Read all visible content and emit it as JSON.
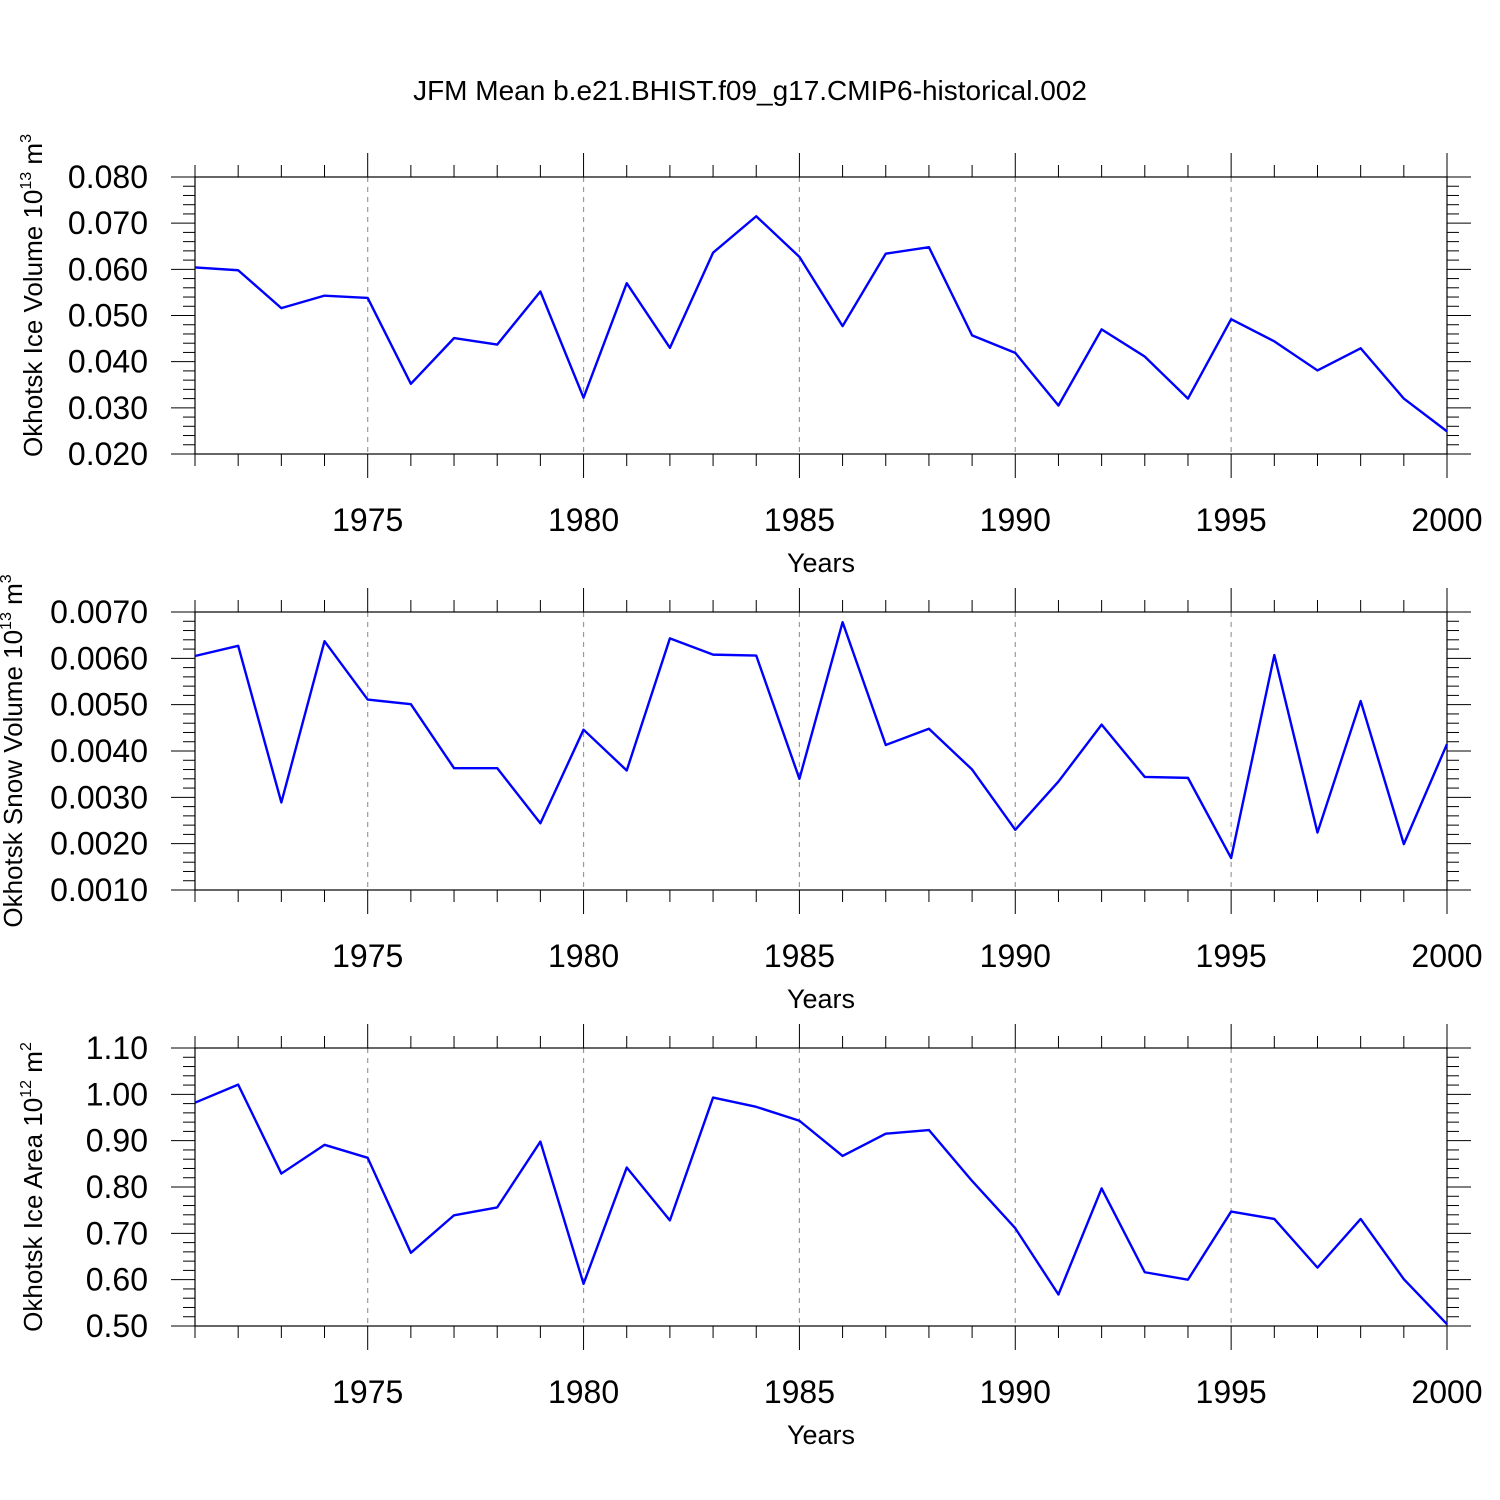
{
  "figure_title": "JFM Mean b.e21.BHIST.f09_g17.CMIP6-historical.002",
  "chart_data": [
    {
      "type": "line",
      "title": "JFM Mean b.e21.BHIST.f09_g17.CMIP6-historical.002",
      "xlabel": "Years",
      "ylabel": {
        "text": "Okhotsk Ice Volume 10",
        "sup": "13",
        "unit": "m",
        "unit_sup": "3"
      },
      "xlim": [
        1971,
        2000
      ],
      "ylim": [
        0.02,
        0.08
      ],
      "x_ticks": [
        1975,
        1980,
        1985,
        1990,
        1995,
        2000
      ],
      "y_ticks": [
        "0.020",
        "0.030",
        "0.040",
        "0.050",
        "0.060",
        "0.070",
        "0.080"
      ],
      "grid": "vertical dashed at major x ticks",
      "line_color": "#0000ff",
      "x": [
        1971,
        1972,
        1973,
        1974,
        1975,
        1976,
        1977,
        1978,
        1979,
        1980,
        1981,
        1982,
        1983,
        1984,
        1985,
        1986,
        1987,
        1988,
        1989,
        1990,
        1991,
        1992,
        1993,
        1994,
        1995,
        1996,
        1997,
        1998,
        1999,
        2000
      ],
      "series": [
        {
          "values": [
            0.0604,
            0.0598,
            0.0516,
            0.0543,
            0.0538,
            0.0352,
            0.0451,
            0.0437,
            0.0552,
            0.0322,
            0.057,
            0.043,
            0.0636,
            0.0715,
            0.0627,
            0.0477,
            0.0634,
            0.0648,
            0.0457,
            0.0419,
            0.0305,
            0.047,
            0.0411,
            0.032,
            0.0492,
            0.0444,
            0.0381,
            0.0429,
            0.032,
            0.0249
          ]
        }
      ]
    },
    {
      "type": "line",
      "xlabel": "Years",
      "ylabel": {
        "text": "Okhotsk Snow Volume 10",
        "sup": "13",
        "unit": "m",
        "unit_sup": "3"
      },
      "xlim": [
        1971,
        2000
      ],
      "ylim": [
        0.001,
        0.007
      ],
      "x_ticks": [
        1975,
        1980,
        1985,
        1990,
        1995,
        2000
      ],
      "y_ticks": [
        "0.0010",
        "0.0020",
        "0.0030",
        "0.0040",
        "0.0050",
        "0.0060",
        "0.0070"
      ],
      "grid": "vertical dashed at major x ticks",
      "line_color": "#0000ff",
      "x": [
        1971,
        1972,
        1973,
        1974,
        1975,
        1976,
        1977,
        1978,
        1979,
        1980,
        1981,
        1982,
        1983,
        1984,
        1985,
        1986,
        1987,
        1988,
        1989,
        1990,
        1991,
        1992,
        1993,
        1994,
        1995,
        1996,
        1997,
        1998,
        1999,
        2000
      ],
      "series": [
        {
          "values": [
            0.00605,
            0.00627,
            0.00289,
            0.00637,
            0.00511,
            0.00501,
            0.00363,
            0.00363,
            0.00244,
            0.00446,
            0.00358,
            0.00643,
            0.00608,
            0.00606,
            0.0034,
            0.00678,
            0.00413,
            0.00448,
            0.0036,
            0.0023,
            0.00334,
            0.00457,
            0.00344,
            0.00342,
            0.00169,
            0.00607,
            0.00224,
            0.00508,
            0.00199,
            0.00415
          ]
        }
      ]
    },
    {
      "type": "line",
      "xlabel": "Years",
      "ylabel": {
        "text": "Okhotsk Ice Area 10",
        "sup": "12",
        "unit": "m",
        "unit_sup": "2"
      },
      "xlim": [
        1971,
        2000
      ],
      "ylim": [
        0.5,
        1.1
      ],
      "x_ticks": [
        1975,
        1980,
        1985,
        1990,
        1995,
        2000
      ],
      "y_ticks": [
        "0.50",
        "0.60",
        "0.70",
        "0.80",
        "0.90",
        "1.00",
        "1.10"
      ],
      "grid": "vertical dashed at major x ticks",
      "line_color": "#0000ff",
      "x": [
        1971,
        1972,
        1973,
        1974,
        1975,
        1976,
        1977,
        1978,
        1979,
        1980,
        1981,
        1982,
        1983,
        1984,
        1985,
        1986,
        1987,
        1988,
        1989,
        1990,
        1991,
        1992,
        1993,
        1994,
        1995,
        1996,
        1997,
        1998,
        1999,
        2000
      ],
      "series": [
        {
          "values": [
            0.982,
            1.021,
            0.829,
            0.891,
            0.863,
            0.658,
            0.739,
            0.756,
            0.898,
            0.591,
            0.842,
            0.728,
            0.993,
            0.973,
            0.943,
            0.867,
            0.915,
            0.923,
            0.813,
            0.711,
            0.568,
            0.797,
            0.616,
            0.6,
            0.747,
            0.731,
            0.626,
            0.731,
            0.601,
            0.504
          ]
        }
      ]
    }
  ]
}
